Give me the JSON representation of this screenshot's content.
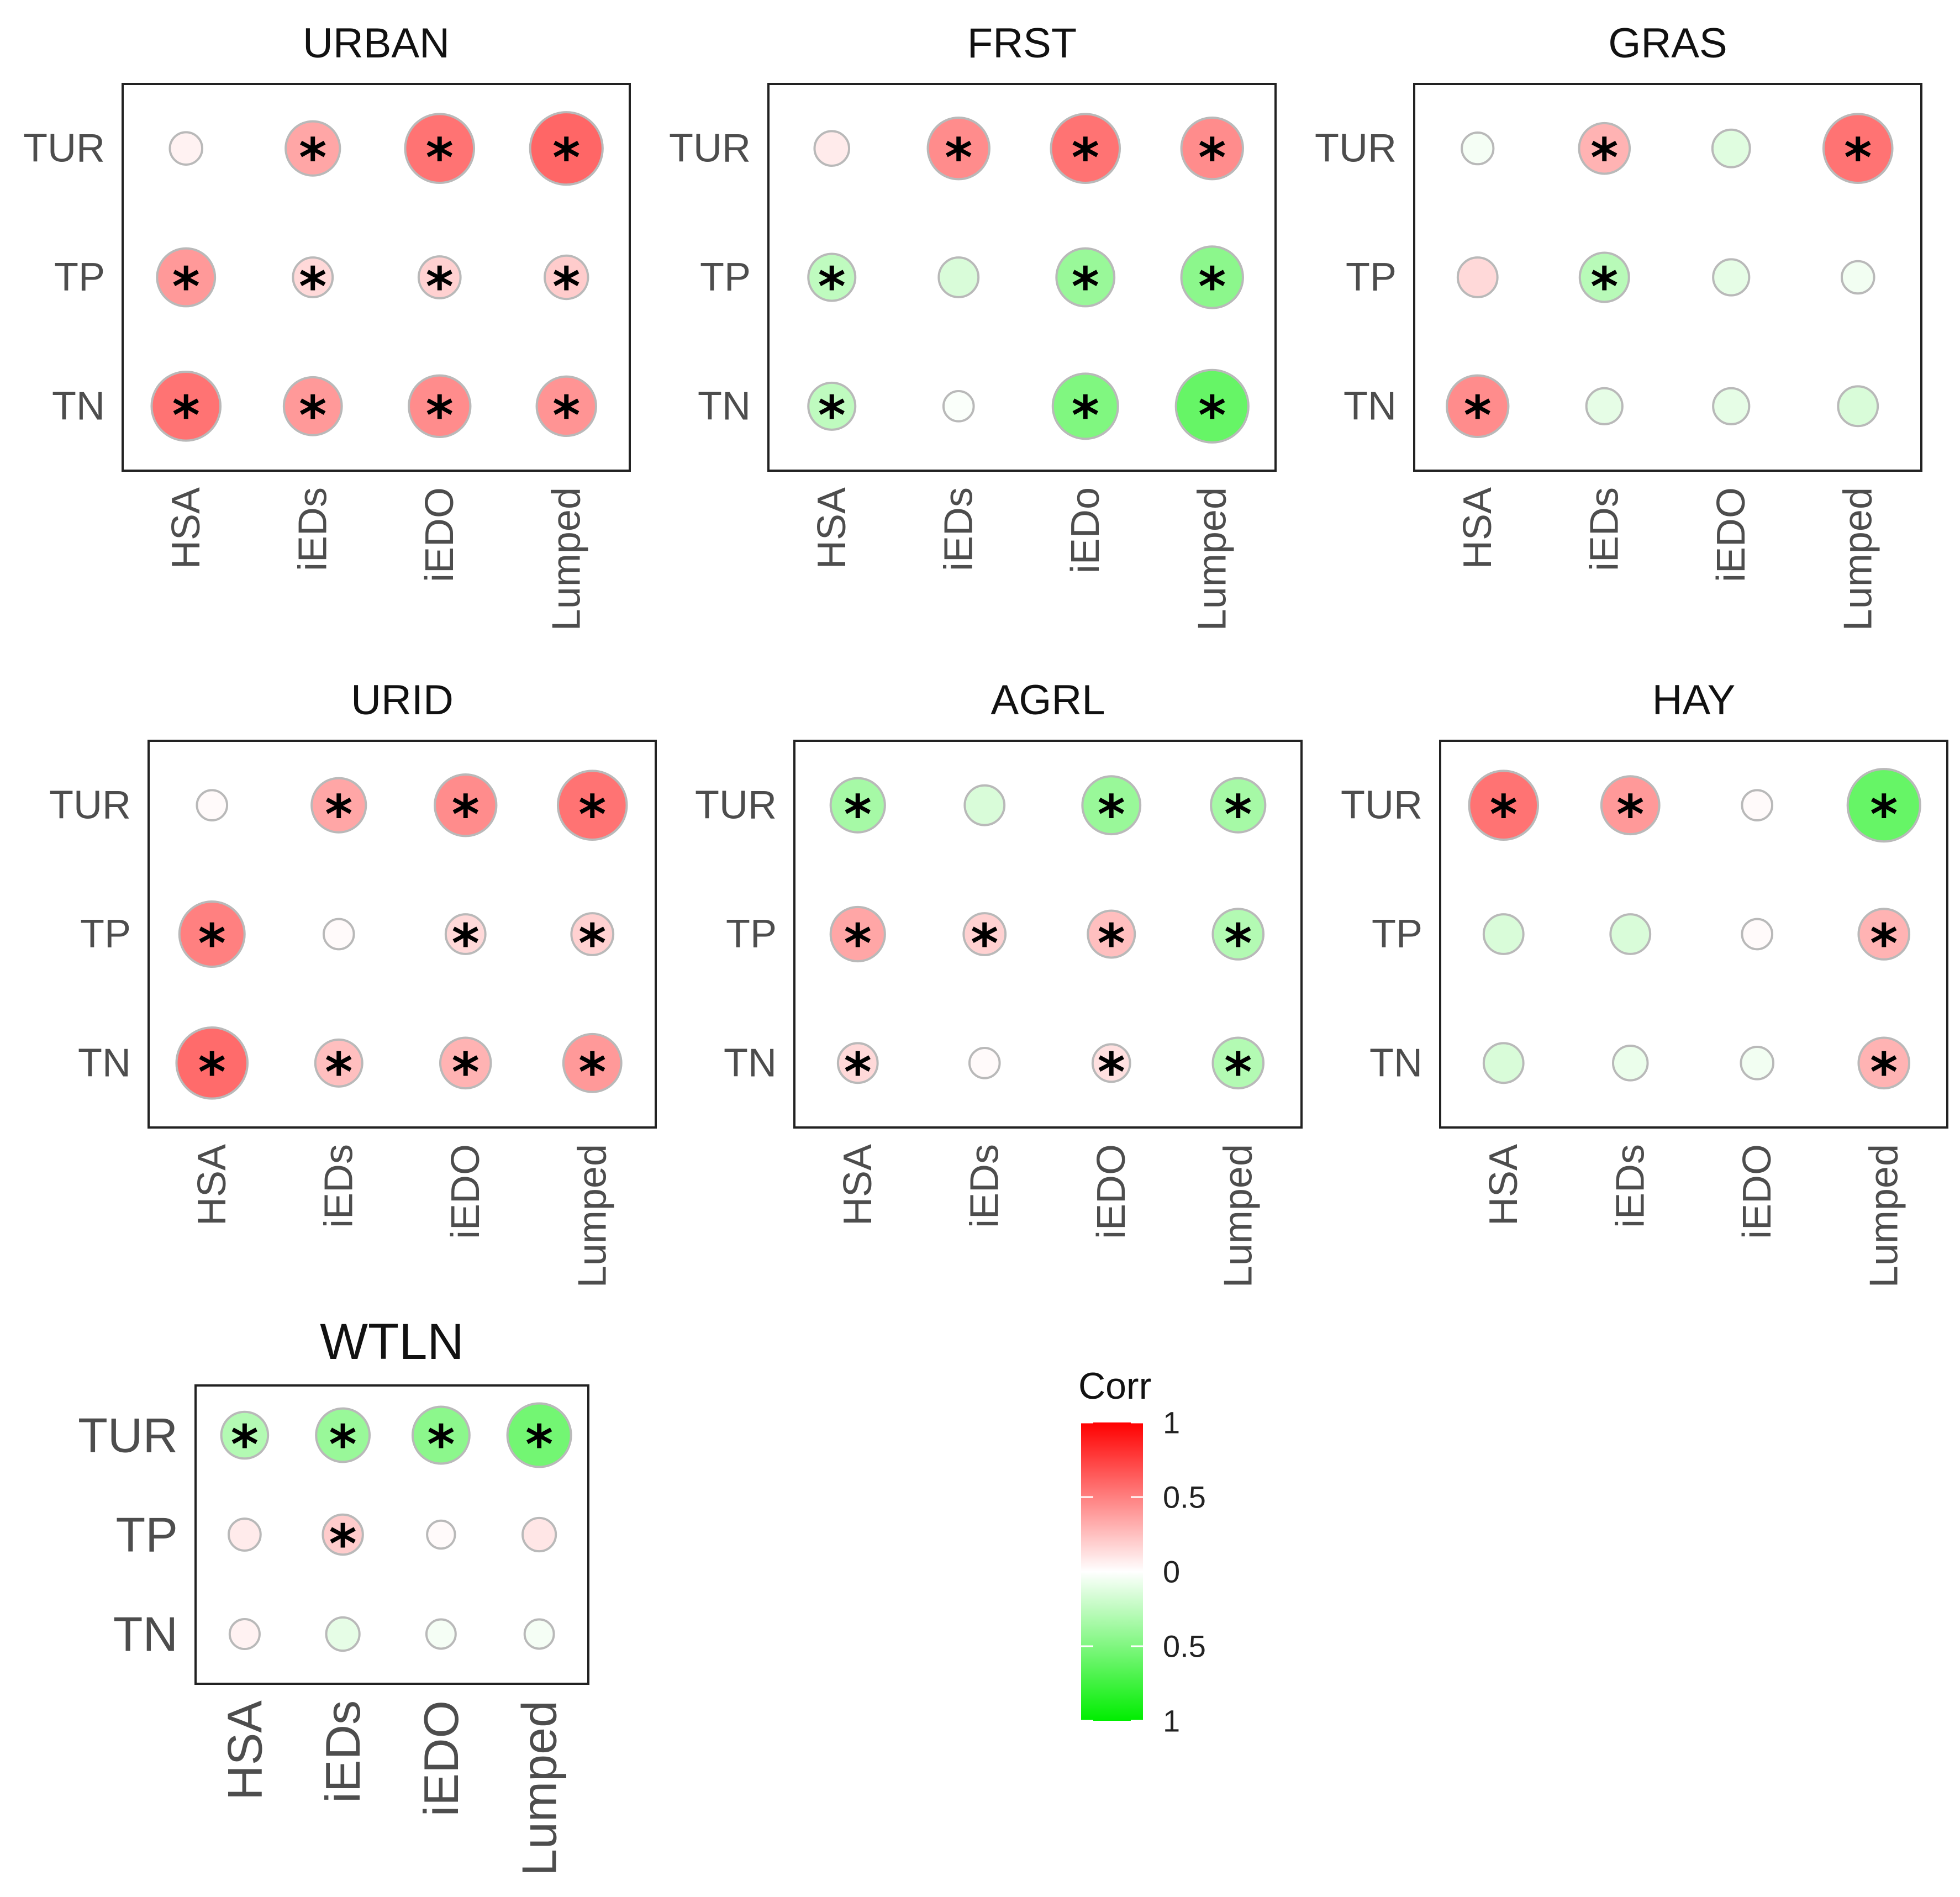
{
  "chart_data": {
    "type": "correlation-dot-matrix",
    "color_scale": {
      "positive_color": "#ff0000",
      "negative_color": "#00ee00",
      "neutral_color": "#ffffff"
    },
    "legend": {
      "title": "Corr",
      "position": "bottom-center",
      "tick_labels": [
        "1",
        "0.5",
        "0",
        "0.5",
        "1"
      ],
      "tick_values": [
        1,
        0.5,
        0,
        -0.5,
        -1
      ]
    },
    "panels": [
      {
        "title": "URBAN",
        "rows": [
          "TUR",
          "TP",
          "TN"
        ],
        "columns": [
          "HSA",
          "iEDs",
          "iEDO",
          "Lumped"
        ],
        "values": [
          [
            0.05,
            0.35,
            0.55,
            0.6
          ],
          [
            0.4,
            0.15,
            0.18,
            0.2
          ],
          [
            0.55,
            0.4,
            0.45,
            0.42
          ]
        ],
        "significant": [
          [
            false,
            true,
            true,
            true
          ],
          [
            true,
            true,
            true,
            true
          ],
          [
            true,
            true,
            true,
            true
          ]
        ]
      },
      {
        "title": "FRST",
        "rows": [
          "TUR",
          "TP",
          "TN"
        ],
        "columns": [
          "HSA",
          "iEDs",
          "iEDo",
          "Lumped"
        ],
        "values": [
          [
            0.08,
            0.45,
            0.55,
            0.45
          ],
          [
            -0.25,
            -0.15,
            -0.4,
            -0.45
          ],
          [
            -0.25,
            -0.02,
            -0.5,
            -0.6
          ]
        ],
        "significant": [
          [
            false,
            true,
            true,
            true
          ],
          [
            true,
            false,
            true,
            true
          ],
          [
            true,
            false,
            true,
            true
          ]
        ]
      },
      {
        "title": "GRAS",
        "rows": [
          "TUR",
          "TP",
          "TN"
        ],
        "columns": [
          "HSA",
          "iEDs",
          "iEDO",
          "Lumped"
        ],
        "values": [
          [
            -0.04,
            0.3,
            -0.12,
            0.55
          ],
          [
            0.15,
            -0.28,
            -0.1,
            -0.05
          ],
          [
            0.45,
            -0.1,
            -0.1,
            -0.15
          ]
        ],
        "significant": [
          [
            false,
            true,
            false,
            true
          ],
          [
            false,
            true,
            false,
            false
          ],
          [
            true,
            false,
            false,
            false
          ]
        ]
      },
      {
        "title": "URID",
        "rows": [
          "TUR",
          "TP",
          "TN"
        ],
        "columns": [
          "HSA",
          "iEDs",
          "iEDO",
          "Lumped"
        ],
        "values": [
          [
            0.02,
            0.35,
            0.45,
            0.55
          ],
          [
            0.5,
            0.02,
            0.15,
            0.18
          ],
          [
            0.58,
            0.25,
            0.3,
            0.4
          ]
        ],
        "significant": [
          [
            false,
            true,
            true,
            true
          ],
          [
            true,
            false,
            true,
            true
          ],
          [
            true,
            true,
            true,
            true
          ]
        ]
      },
      {
        "title": "AGRL",
        "rows": [
          "TUR",
          "TP",
          "TN"
        ],
        "columns": [
          "HSA",
          "iEDs",
          "iEDO",
          "Lumped"
        ],
        "values": [
          [
            -0.35,
            -0.15,
            -0.4,
            -0.35
          ],
          [
            0.35,
            0.18,
            0.25,
            -0.3
          ],
          [
            0.15,
            0.02,
            0.12,
            -0.3
          ]
        ],
        "significant": [
          [
            true,
            false,
            true,
            true
          ],
          [
            true,
            true,
            true,
            true
          ],
          [
            true,
            false,
            true,
            true
          ]
        ]
      },
      {
        "title": "HAY",
        "rows": [
          "TUR",
          "TP",
          "TN"
        ],
        "columns": [
          "HSA",
          "iEDs",
          "iEDO",
          "Lumped"
        ],
        "values": [
          [
            0.55,
            0.4,
            0.02,
            -0.6
          ],
          [
            -0.15,
            -0.15,
            0.02,
            0.3
          ],
          [
            -0.15,
            -0.08,
            -0.05,
            0.3
          ]
        ],
        "significant": [
          [
            true,
            true,
            false,
            true
          ],
          [
            false,
            false,
            false,
            true
          ],
          [
            false,
            false,
            false,
            true
          ]
        ]
      },
      {
        "title": "WTLN",
        "rows": [
          "TUR",
          "TP",
          "TN"
        ],
        "columns": [
          "HSA",
          "iEDs",
          "iEDO",
          "Lumped"
        ],
        "values": [
          [
            -0.3,
            -0.4,
            -0.45,
            -0.55
          ],
          [
            0.08,
            0.2,
            0.02,
            0.1
          ],
          [
            0.05,
            -0.1,
            -0.04,
            -0.04
          ]
        ],
        "significant": [
          [
            true,
            true,
            true,
            true
          ],
          [
            false,
            true,
            false,
            false
          ],
          [
            false,
            false,
            false,
            false
          ]
        ]
      }
    ]
  }
}
